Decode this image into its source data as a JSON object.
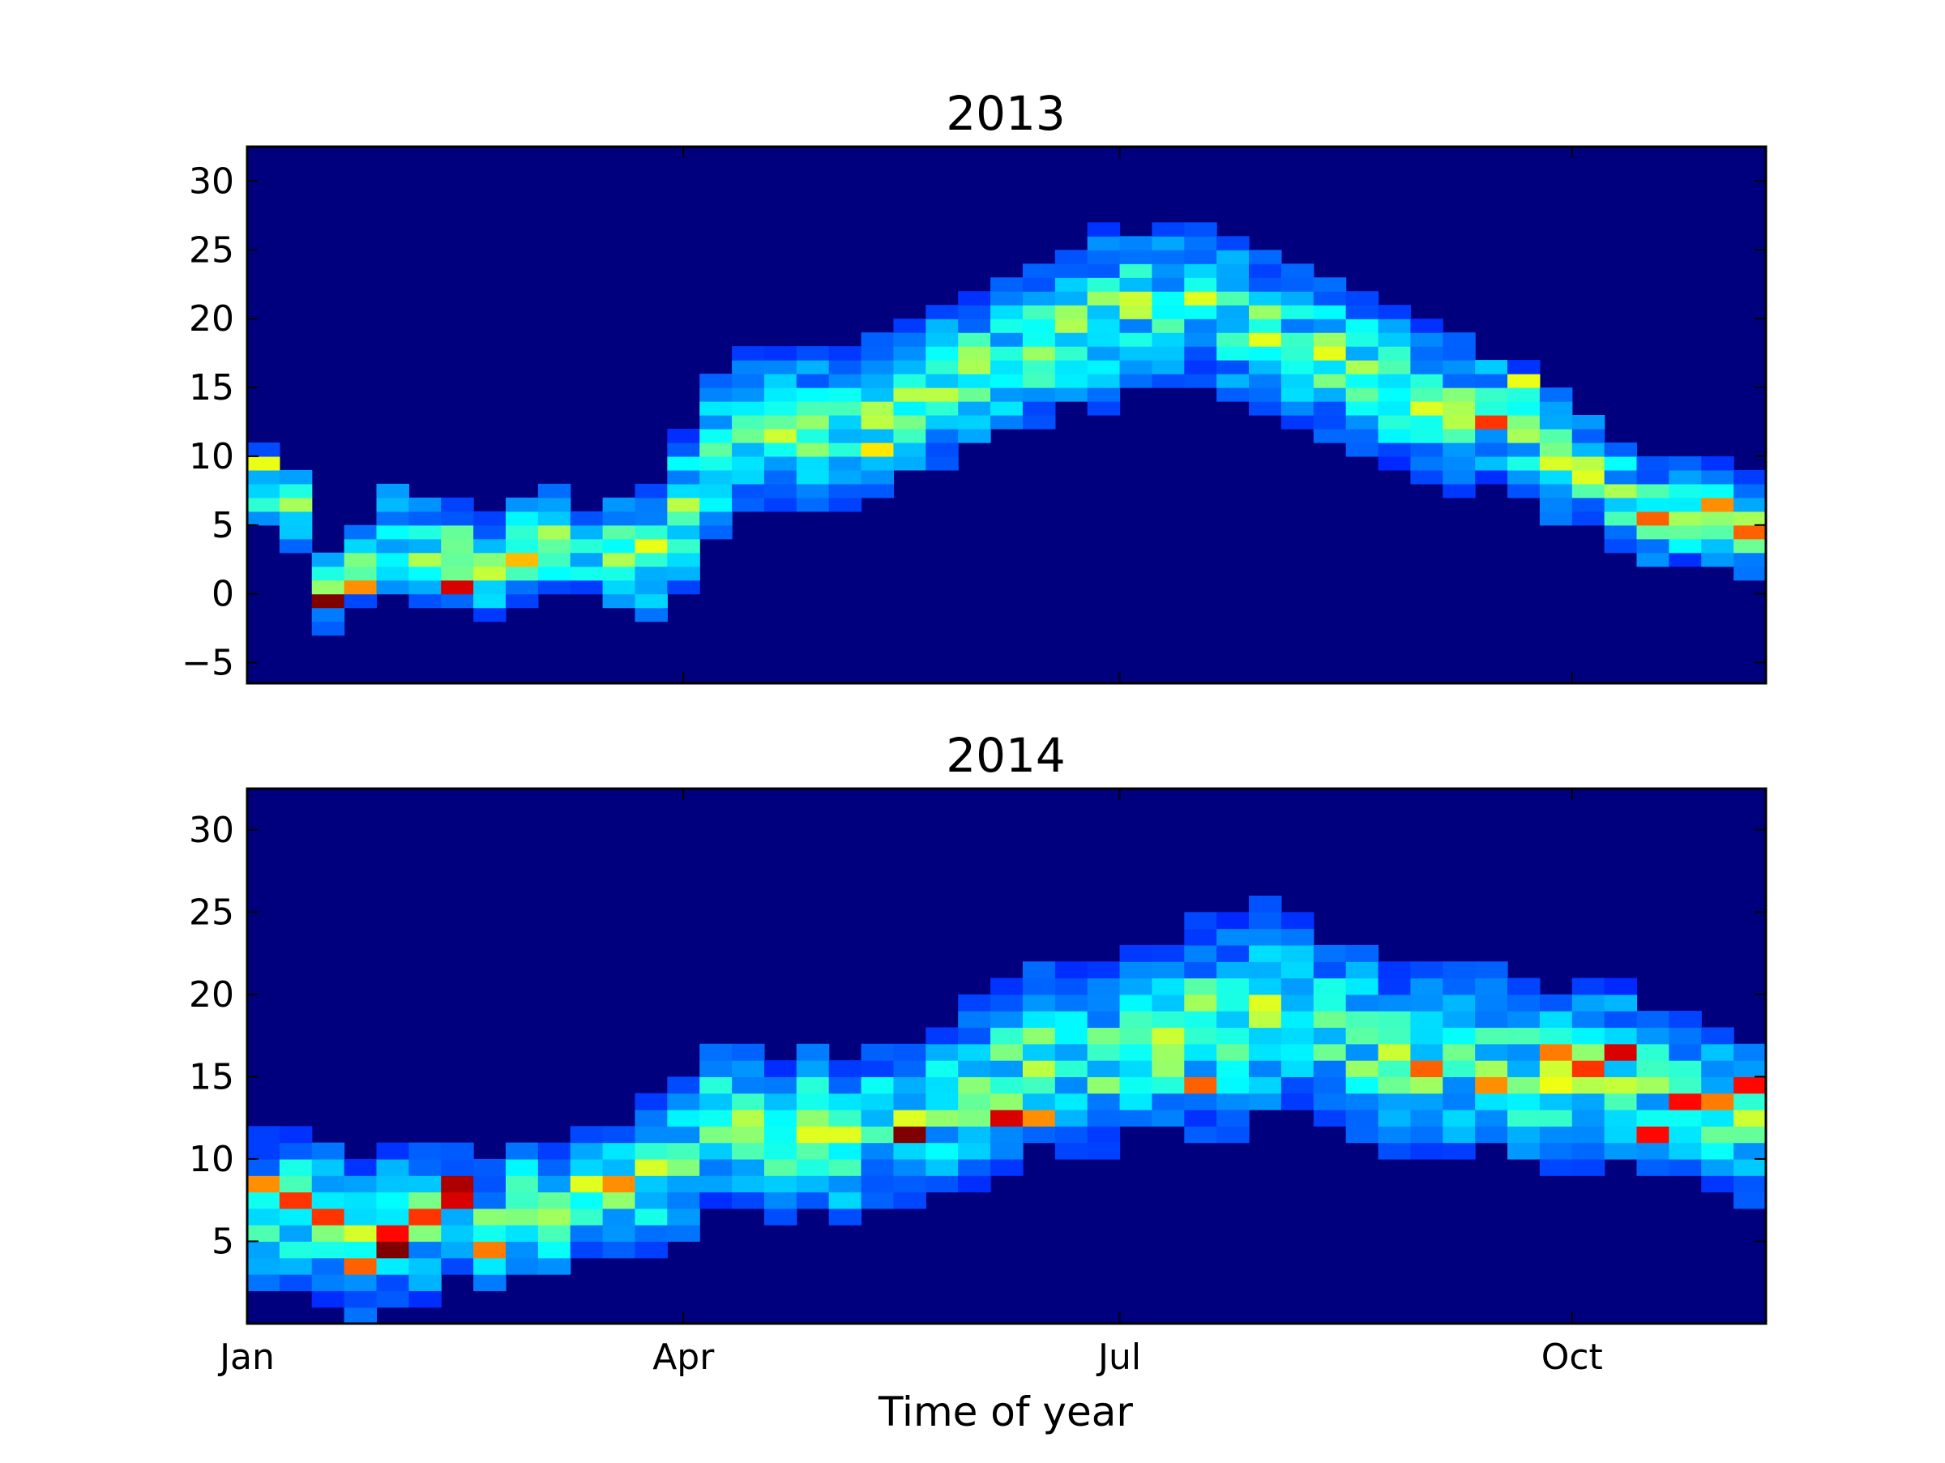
{
  "chart_data": [
    {
      "type": "heatmap",
      "title": "2013",
      "ylim": [
        -6.5,
        32.5
      ],
      "yticks": [
        -5,
        0,
        5,
        10,
        15,
        20,
        25,
        30
      ],
      "ytick_labels": [
        "−5",
        "0",
        "5",
        "10",
        "15",
        "20",
        "25",
        "30"
      ],
      "x_unit": "week",
      "x_range": [
        0,
        47
      ],
      "y_bin_size": 1,
      "show_x_tick_labels": false,
      "colormap": "jet",
      "grid": false,
      "band": {
        "x": [
          0,
          1,
          2,
          3,
          4,
          5,
          6,
          7,
          8,
          9,
          10,
          11,
          12,
          13,
          14,
          15,
          16,
          17,
          18,
          19,
          20,
          21,
          22,
          23,
          24,
          25,
          26,
          27,
          28,
          29,
          30,
          31,
          32,
          33,
          34,
          35,
          36,
          37,
          38,
          39,
          40,
          41,
          42,
          43,
          44,
          45,
          46
        ],
        "center": [
          8,
          6,
          0,
          2,
          4,
          3,
          3,
          2,
          3,
          4,
          3,
          3,
          3,
          6,
          10,
          12,
          12,
          12,
          12,
          13,
          14,
          15,
          16,
          17,
          18,
          19,
          20,
          21,
          21,
          21,
          20,
          19,
          18,
          17,
          16,
          15,
          14,
          13,
          13,
          12,
          10,
          9,
          7,
          6,
          6,
          6,
          5
        ],
        "spread": [
          3,
          3,
          3,
          3,
          4,
          4,
          4,
          4,
          4,
          4,
          3,
          4,
          5,
          6,
          6,
          6,
          6,
          6,
          6,
          6,
          6,
          6,
          6,
          6,
          6,
          6,
          7,
          6,
          6,
          6,
          6,
          6,
          6,
          6,
          6,
          6,
          6,
          6,
          5,
          5,
          5,
          4,
          4,
          4,
          4,
          4,
          4
        ]
      },
      "hotspots": [
        {
          "x": 2,
          "y": -1,
          "level": 1.0
        },
        {
          "x": 3,
          "y": 0,
          "level": 0.7
        },
        {
          "x": 6,
          "y": 0,
          "level": 0.9
        },
        {
          "x": 8,
          "y": 2,
          "level": 0.65
        },
        {
          "x": 0,
          "y": 9,
          "level": 0.55
        },
        {
          "x": 19,
          "y": 10,
          "level": 0.6
        },
        {
          "x": 38,
          "y": 12,
          "level": 0.8
        },
        {
          "x": 43,
          "y": 5,
          "level": 0.75
        },
        {
          "x": 45,
          "y": 6,
          "level": 0.7
        },
        {
          "x": 46,
          "y": 4,
          "level": 0.75
        },
        {
          "x": 39,
          "y": 15,
          "level": 0.55
        }
      ]
    },
    {
      "type": "heatmap",
      "title": "2014",
      "ylim": [
        0,
        32.5
      ],
      "yticks": [
        5,
        10,
        15,
        20,
        25,
        30
      ],
      "ytick_labels": [
        "5",
        "10",
        "15",
        "20",
        "25",
        "30"
      ],
      "x_unit": "week",
      "x_range": [
        0,
        47
      ],
      "y_bin_size": 1,
      "show_x_tick_labels": true,
      "xticks": [
        0,
        13.5,
        27,
        41
      ],
      "xtick_labels": [
        "Jan",
        "Apr",
        "Jul",
        "Oct"
      ],
      "xlabel": "Time of year",
      "colormap": "jet",
      "grid": false,
      "band": {
        "x": [
          0,
          1,
          2,
          3,
          4,
          5,
          6,
          7,
          8,
          9,
          10,
          11,
          12,
          13,
          14,
          15,
          16,
          17,
          18,
          19,
          20,
          21,
          22,
          23,
          24,
          25,
          26,
          27,
          28,
          29,
          30,
          31,
          32,
          33,
          34,
          35,
          36,
          37,
          38,
          39,
          40,
          41,
          42,
          43,
          44,
          45,
          46
        ],
        "center": [
          7,
          7,
          6,
          5,
          6,
          6,
          7,
          6,
          7,
          7,
          8,
          8,
          9,
          10,
          12,
          12,
          11,
          12,
          11,
          12,
          12,
          13,
          14,
          15,
          16,
          16,
          16,
          17,
          17,
          18,
          18,
          19,
          19,
          18,
          17,
          16,
          16,
          16,
          16,
          15,
          15,
          15,
          15,
          14,
          14,
          13,
          12
        ],
        "spread": [
          5,
          5,
          5,
          5,
          5,
          5,
          4,
          4,
          4,
          4,
          4,
          4,
          5,
          5,
          5,
          5,
          5,
          5,
          5,
          5,
          5,
          5,
          6,
          6,
          6,
          6,
          6,
          6,
          6,
          7,
          7,
          7,
          6,
          6,
          6,
          6,
          6,
          6,
          6,
          6,
          6,
          6,
          6,
          5,
          5,
          5,
          5
        ]
      },
      "hotspots": [
        {
          "x": 4,
          "y": 4,
          "level": 1.0
        },
        {
          "x": 4,
          "y": 5,
          "level": 0.85
        },
        {
          "x": 5,
          "y": 6,
          "level": 0.8
        },
        {
          "x": 6,
          "y": 7,
          "level": 0.9
        },
        {
          "x": 6,
          "y": 8,
          "level": 0.95
        },
        {
          "x": 1,
          "y": 7,
          "level": 0.8
        },
        {
          "x": 2,
          "y": 6,
          "level": 0.8
        },
        {
          "x": 0,
          "y": 8,
          "level": 0.7
        },
        {
          "x": 3,
          "y": 3,
          "level": 0.75
        },
        {
          "x": 7,
          "y": 4,
          "level": 0.72
        },
        {
          "x": 11,
          "y": 8,
          "level": 0.7
        },
        {
          "x": 20,
          "y": 11,
          "level": 1.0
        },
        {
          "x": 23,
          "y": 12,
          "level": 0.9
        },
        {
          "x": 24,
          "y": 12,
          "level": 0.7
        },
        {
          "x": 29,
          "y": 14,
          "level": 0.75
        },
        {
          "x": 36,
          "y": 15,
          "level": 0.75
        },
        {
          "x": 38,
          "y": 14,
          "level": 0.7
        },
        {
          "x": 40,
          "y": 16,
          "level": 0.72
        },
        {
          "x": 41,
          "y": 15,
          "level": 0.8
        },
        {
          "x": 42,
          "y": 16,
          "level": 0.9
        },
        {
          "x": 43,
          "y": 11,
          "level": 0.85
        },
        {
          "x": 44,
          "y": 13,
          "level": 0.85
        },
        {
          "x": 45,
          "y": 13,
          "level": 0.72
        },
        {
          "x": 46,
          "y": 14,
          "level": 0.85
        }
      ]
    }
  ]
}
